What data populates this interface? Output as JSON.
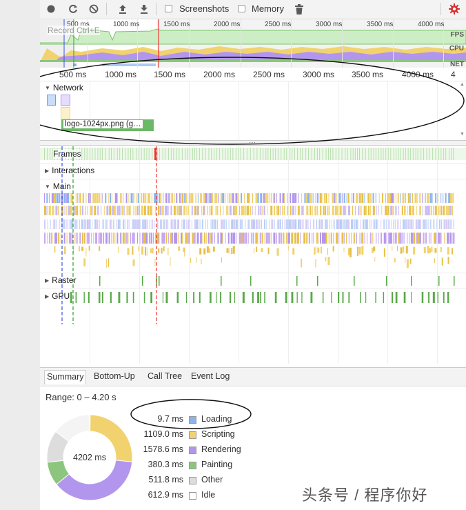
{
  "toolbar": {
    "screenshots_label": "Screenshots",
    "memory_label": "Memory"
  },
  "overview": {
    "tooltip": "Record Ctrl+E",
    "ticks": [
      "500 ms",
      "1000 ms",
      "1500 ms",
      "2000 ms",
      "2500 ms",
      "3000 ms",
      "3500 ms",
      "4000 ms"
    ],
    "fps_label": "FPS",
    "cpu_label": "CPU",
    "net_label": "NET"
  },
  "ruler": {
    "ticks": [
      "500 ms",
      "1000 ms",
      "1500 ms",
      "2000 ms",
      "2500 ms",
      "3000 ms",
      "3500 ms",
      "4000 ms",
      "4"
    ]
  },
  "tracks": {
    "network": "Network",
    "network_item": "logo-1024px.png (g…",
    "frames": "Frames",
    "interactions": "Interactions",
    "main": "Main",
    "raster": "Raster",
    "gpu": "GPU"
  },
  "tabs": [
    "Summary",
    "Bottom-Up",
    "Call Tree",
    "Event Log"
  ],
  "summary": {
    "range": "Range: 0 – 4.20 s",
    "total": "4202 ms",
    "legend": [
      {
        "value": "9.7 ms",
        "name": "Loading",
        "color": "#8ab4f0"
      },
      {
        "value": "1109.0 ms",
        "name": "Scripting",
        "color": "#f1d26e"
      },
      {
        "value": "1578.6 ms",
        "name": "Rendering",
        "color": "#b296ee"
      },
      {
        "value": "380.3 ms",
        "name": "Painting",
        "color": "#8cc67e"
      },
      {
        "value": "511.8 ms",
        "name": "Other",
        "color": "#dddddd"
      },
      {
        "value": "612.9 ms",
        "name": "Idle",
        "color": "#ffffff"
      }
    ]
  },
  "watermark": "头条号 / 程序你好",
  "colors": {
    "loading": "#8ab4f0",
    "scripting": "#f1d26e",
    "rendering": "#b296ee",
    "painting": "#8cc67e",
    "other": "#dddddd",
    "marker_red": "#e33",
    "marker_blue": "#3b4ee0",
    "marker_green": "#2ca02c",
    "gear_red": "#d32f2f"
  }
}
